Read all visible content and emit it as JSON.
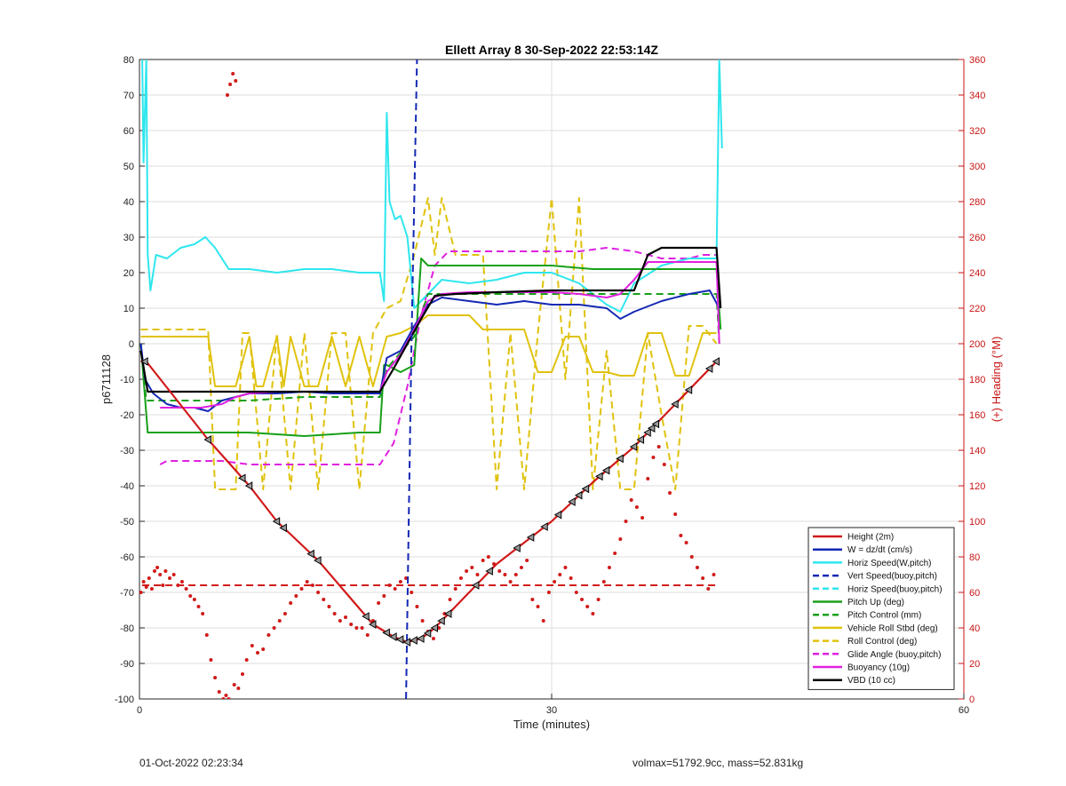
{
  "footer": {
    "left_text": "01-Oct-2022 02:23:34",
    "right_text": "volmax=51792.9cc, mass=52.831kg"
  },
  "chart_data": {
    "type": "line",
    "title": "Ellett Array 8 30-Sep-2022 22:53:14Z",
    "xlabel": "Time (minutes)",
    "ylabel": "p6711128",
    "y2label": "(+) Heading (°M)",
    "xlim": [
      0,
      60
    ],
    "ylim": [
      -100,
      80
    ],
    "y2lim": [
      0,
      360
    ],
    "xticks": [
      0,
      30,
      60
    ],
    "yticks": [
      -100,
      -90,
      -80,
      -70,
      -60,
      -50,
      -40,
      -30,
      -20,
      -10,
      0,
      10,
      20,
      30,
      40,
      50,
      60,
      70,
      80
    ],
    "y2ticks": [
      0,
      20,
      40,
      60,
      80,
      100,
      120,
      140,
      160,
      180,
      200,
      220,
      240,
      260,
      280,
      300,
      320,
      340,
      360
    ],
    "grid": true,
    "legend_position": "bottom-right",
    "colors": {
      "red": "#d11a1a",
      "blue": "#1428b4",
      "cyan": "#2ee6ee",
      "green": "#18a018",
      "yellow": "#e0c20e",
      "magenta": "#e020e0",
      "black": "#000000",
      "axis2": "#c81414"
    },
    "series": [
      {
        "name": "Height (2m)",
        "color": "red",
        "dash": false,
        "x": [
          0.1,
          0.5,
          5,
          8,
          10,
          13,
          15,
          17,
          18.5,
          19.5,
          20.5,
          21.5,
          23,
          26,
          30,
          33,
          36,
          39,
          42
        ],
        "y": [
          -5,
          -5,
          -27,
          -40,
          -50,
          -61,
          -70,
          -79,
          -82.5,
          -84,
          -83,
          -80,
          -74,
          -62,
          -50,
          -39,
          -29,
          -17,
          -5
        ]
      },
      {
        "name": "W = dz/dt (cm/s)",
        "color": "blue",
        "dash": false,
        "x": [
          0.1,
          0.4,
          1,
          2,
          3,
          4,
          5,
          6,
          8,
          10,
          12,
          14,
          16,
          17.5,
          18,
          19,
          20,
          21,
          22,
          24,
          26,
          28,
          30,
          32,
          34,
          35,
          36,
          38,
          40,
          41.5,
          42.2
        ],
        "y": [
          0,
          -10,
          -14,
          -17,
          -18,
          -18,
          -19,
          -16,
          -14,
          -14,
          -13.5,
          -14,
          -14,
          -14,
          -4,
          -2,
          5,
          11,
          13,
          12,
          11,
          12,
          11,
          11,
          10,
          7,
          9,
          12,
          14,
          15,
          10
        ]
      },
      {
        "name": "Horiz Speed(W,pitch)",
        "color": "cyan",
        "dash": false,
        "x": [
          0.2,
          0.3,
          0.5,
          0.6,
          0.8,
          1.2,
          2,
          3,
          4,
          4.8,
          5.5,
          6.5,
          8,
          10,
          12,
          14,
          16,
          17,
          17.5,
          17.8,
          18,
          18.2,
          18.6,
          19,
          19.5,
          20,
          21,
          22,
          24,
          26,
          28,
          30,
          32,
          34,
          35,
          36,
          38,
          40,
          41,
          42,
          42.2,
          42.4
        ],
        "y": [
          80,
          51,
          80,
          25,
          15,
          25,
          24,
          27,
          28,
          30,
          27,
          21,
          21,
          20,
          21,
          21,
          20,
          20,
          20,
          12,
          65,
          40,
          35,
          36,
          30,
          10,
          14,
          18,
          17,
          18,
          20,
          20,
          17,
          11,
          9,
          17,
          22,
          24,
          24,
          24,
          80,
          55
        ]
      },
      {
        "name": "Vert Speed(buoy,pitch)",
        "color": "blue",
        "dash": true,
        "x": [
          19.4,
          19.6,
          19.8,
          20.0,
          20.2
        ],
        "y": [
          -100,
          -50,
          0,
          40,
          80
        ]
      },
      {
        "name": "Horiz Speed(buoy,pitch)",
        "color": "cyan",
        "dash": true,
        "x": [],
        "y": []
      },
      {
        "name": "Pitch Up (deg)",
        "color": "green",
        "dash": false,
        "x": [
          0.1,
          0.6,
          1,
          3,
          5,
          8,
          12,
          16,
          17.5,
          17.8,
          18,
          19,
          20,
          20.5,
          21,
          23,
          26,
          30,
          33,
          36,
          39,
          41,
          42,
          42.3
        ],
        "y": [
          0,
          -25,
          -25,
          -25,
          -25,
          -25,
          -26,
          -25,
          -25,
          -6,
          -6,
          -8,
          -6,
          24,
          22,
          22,
          22,
          22,
          21,
          21,
          21,
          21,
          21,
          4
        ]
      },
      {
        "name": "Pitch Control (mm)",
        "color": "green",
        "dash": true,
        "x": [
          0.1,
          0.5,
          2,
          5,
          8,
          12,
          17.5,
          18,
          20,
          21,
          25,
          30,
          35,
          38,
          40,
          42,
          42.2
        ],
        "y": [
          0,
          -16,
          -16,
          -16,
          -16,
          -15,
          -15,
          -7,
          2,
          14,
          14,
          14,
          14,
          14,
          14,
          14,
          0
        ]
      },
      {
        "name": "Vehicle Roll Stbd (deg)",
        "color": "yellow",
        "dash": false,
        "x": [
          0.1,
          0.3,
          1,
          3,
          5,
          5.5,
          6.5,
          7,
          8,
          8.5,
          9,
          10,
          10.5,
          11,
          12,
          13,
          14,
          15,
          16,
          17,
          18,
          19,
          20,
          21,
          22,
          23,
          24,
          25,
          26,
          27,
          28,
          29,
          30,
          31,
          32,
          33,
          34,
          35,
          36,
          37,
          38,
          39,
          40,
          41,
          42
        ],
        "y": [
          2,
          2,
          2,
          2,
          2,
          -12,
          -12,
          -12,
          2,
          -12,
          -12,
          2,
          -12,
          2,
          -12,
          -12,
          2,
          -12,
          2,
          -12,
          2,
          3,
          5,
          8,
          8,
          8,
          8,
          4,
          4,
          4,
          4,
          -8,
          -8,
          2,
          2,
          -8,
          -8,
          -9,
          -9,
          3,
          3,
          -9,
          -9,
          3,
          3
        ]
      },
      {
        "name": "Roll Control (deg)",
        "color": "yellow",
        "dash": true,
        "x": [
          0.1,
          0.4,
          5,
          5.5,
          7,
          7.5,
          8,
          9,
          10,
          11,
          12,
          13,
          14,
          15,
          16,
          17,
          18,
          19,
          20,
          21,
          21.5,
          22,
          23,
          24,
          25,
          26,
          27,
          28,
          29,
          30,
          31,
          32,
          33,
          34,
          35,
          36,
          37,
          38,
          39,
          40,
          41,
          42
        ],
        "y": [
          4,
          4,
          4,
          -41,
          -41,
          3,
          3,
          -41,
          3,
          -41,
          3,
          -41,
          3,
          3,
          -41,
          3,
          10,
          12,
          25,
          41,
          25,
          41,
          25,
          25,
          25,
          -41,
          3,
          -41,
          3,
          41,
          -10,
          41,
          -41,
          -2,
          -41,
          -41,
          3,
          -20,
          -41,
          5,
          5,
          0
        ]
      },
      {
        "name": "Glide Angle (buoy,pitch)",
        "color": "magenta",
        "dash": true,
        "x": [
          1.5,
          2,
          4,
          6,
          8,
          10,
          12,
          14,
          16,
          17.5,
          18.5,
          19.5,
          20.5,
          21.5,
          22.5,
          24,
          26,
          28,
          30,
          32,
          34,
          36,
          38,
          40,
          41,
          42
        ],
        "y": [
          -34,
          -33,
          -33,
          -33,
          -34,
          -34,
          -34,
          -34,
          -34,
          -34,
          -28,
          -12,
          8,
          22,
          26,
          26,
          26,
          26,
          26,
          26,
          27,
          26,
          24,
          24,
          25,
          25
        ]
      },
      {
        "name": "Buoyancy (10g)",
        "color": "magenta",
        "dash": false,
        "x": [
          1.5,
          3,
          4.5,
          6,
          7,
          8,
          10,
          13,
          16,
          17.5,
          18,
          19,
          20,
          21,
          22,
          24,
          26,
          28,
          30,
          32,
          34,
          35,
          36,
          37,
          38,
          40,
          41,
          42,
          42.2
        ],
        "y": [
          -18,
          -18,
          -18,
          -17,
          -15,
          -14,
          -13.5,
          -13.5,
          -13.5,
          -13.5,
          -8,
          -3,
          4,
          12,
          14,
          14.5,
          14.5,
          14.5,
          14.5,
          14,
          13,
          14,
          18,
          23,
          23,
          23,
          23,
          23,
          0
        ]
      },
      {
        "name": "VBD (10 cc)",
        "color": "black",
        "dash": false,
        "x": [
          0.1,
          0.6,
          2,
          5,
          10,
          15,
          17.5,
          18.5,
          19.5,
          20.5,
          21.5,
          23,
          26,
          30,
          33,
          36,
          37,
          38,
          40,
          42,
          42.3
        ],
        "y": [
          -2,
          -13.5,
          -13.5,
          -13.5,
          -13.5,
          -13.5,
          -13.5,
          -7,
          0,
          7,
          13.5,
          14,
          14.5,
          15,
          15,
          15,
          25,
          27,
          27,
          27,
          10
        ]
      }
    ],
    "heading_scatter": {
      "name": "(+) Heading (°M)",
      "color": "red",
      "axis": "right",
      "x": [
        0.1,
        0.3,
        0.5,
        0.7,
        0.9,
        1.1,
        1.3,
        1.5,
        1.7,
        1.9,
        2.2,
        2.5,
        2.8,
        3.1,
        3.4,
        3.7,
        4.0,
        4.3,
        4.6,
        4.9,
        5.2,
        5.5,
        5.8,
        6.1,
        6.3,
        6.5,
        6.9,
        7.2,
        7.5,
        7.8,
        8.2,
        8.6,
        9.0,
        9.4,
        9.8,
        10.2,
        10.6,
        11.0,
        11.4,
        11.8,
        12.2,
        12.6,
        13.0,
        13.4,
        13.8,
        14.2,
        14.6,
        15.0,
        15.4,
        15.8,
        16.2,
        16.6,
        17.0,
        17.4,
        17.8,
        18.2,
        18.6,
        19.0,
        19.4,
        19.8,
        20.2,
        20.6,
        21.0,
        21.4,
        21.8,
        22.2,
        22.6,
        23.0,
        23.4,
        23.8,
        24.2,
        24.6,
        25.0,
        25.4,
        25.8,
        26.2,
        26.6,
        27.0,
        27.4,
        27.8,
        28.2,
        28.6,
        29.0,
        29.4,
        29.8,
        30.2,
        30.6,
        31.0,
        31.4,
        31.8,
        32.2,
        32.6,
        33.0,
        33.4,
        33.8,
        34.2,
        34.6,
        35.0,
        35.4,
        35.8,
        36.2,
        36.6,
        37.0,
        37.4,
        37.8,
        38.2,
        38.6,
        39.0,
        39.4,
        39.8,
        40.2,
        40.6,
        41.0,
        41.4,
        41.8,
        6.4,
        6.6,
        6.8,
        7.0
      ],
      "y": [
        60,
        66,
        63,
        68,
        62,
        72,
        74,
        70,
        64,
        72,
        68,
        70,
        64,
        66,
        62,
        58,
        56,
        52,
        48,
        36,
        22,
        12,
        4,
        0,
        2,
        0,
        8,
        6,
        14,
        22,
        30,
        26,
        28,
        36,
        40,
        44,
        48,
        54,
        58,
        62,
        66,
        64,
        60,
        56,
        52,
        48,
        44,
        46,
        42,
        40,
        40,
        36,
        44,
        54,
        58,
        64,
        62,
        66,
        68,
        60,
        52,
        44,
        38,
        34,
        40,
        48,
        56,
        62,
        68,
        72,
        74,
        70,
        78,
        80,
        76,
        72,
        70,
        66,
        70,
        74,
        78,
        56,
        52,
        44,
        60,
        66,
        70,
        74,
        68,
        60,
        56,
        52,
        48,
        56,
        66,
        74,
        82,
        90,
        100,
        112,
        108,
        102,
        124,
        136,
        142,
        132,
        116,
        104,
        92,
        88,
        80,
        74,
        68,
        62,
        70,
        340,
        346,
        352,
        348
      ]
    }
  }
}
